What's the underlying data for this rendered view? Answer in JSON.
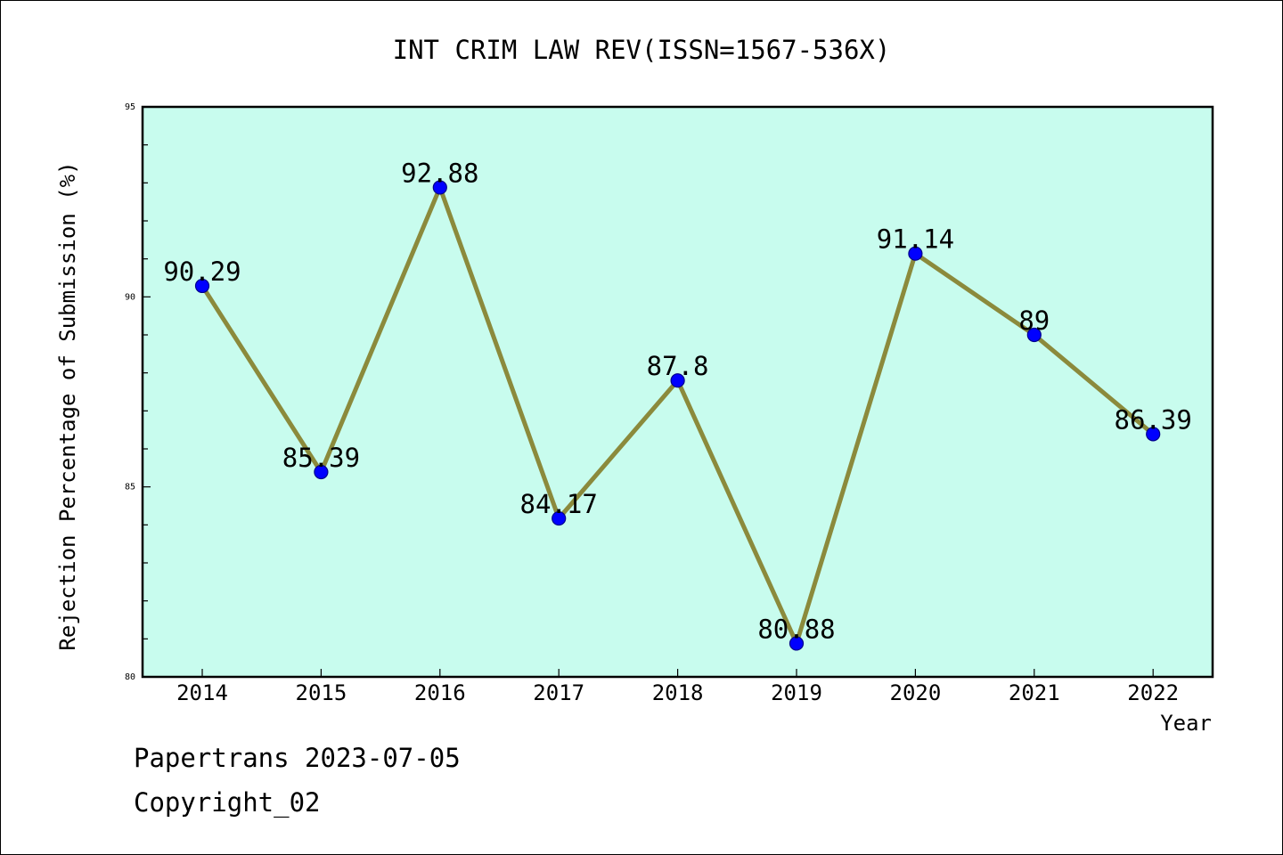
{
  "chart_data": {
    "type": "line",
    "title": "INT CRIM LAW REV(ISSN=1567-536X)",
    "xlabel": "Year",
    "ylabel": "Rejection Percentage of Submission (%)",
    "categories": [
      "2014",
      "2015",
      "2016",
      "2017",
      "2018",
      "2019",
      "2020",
      "2021",
      "2022"
    ],
    "values": [
      90.29,
      85.39,
      92.88,
      84.17,
      87.8,
      80.88,
      91.14,
      89,
      86.39
    ],
    "data_labels": [
      "90.29",
      "85.39",
      "92.88",
      "84.17",
      "87.8",
      "80.88",
      "91.14",
      "89",
      "86.39"
    ],
    "ylim": [
      80,
      95
    ],
    "yticks": [
      80,
      85,
      90,
      95
    ],
    "grid": false,
    "colors": {
      "plot_background": "#c8fcee",
      "line": "#8b8a3c",
      "marker": "#0000ff",
      "marker_edge": "#00008b"
    }
  },
  "footer": {
    "line1": "Papertrans 2023-07-05",
    "line2": "Copyright_02"
  }
}
